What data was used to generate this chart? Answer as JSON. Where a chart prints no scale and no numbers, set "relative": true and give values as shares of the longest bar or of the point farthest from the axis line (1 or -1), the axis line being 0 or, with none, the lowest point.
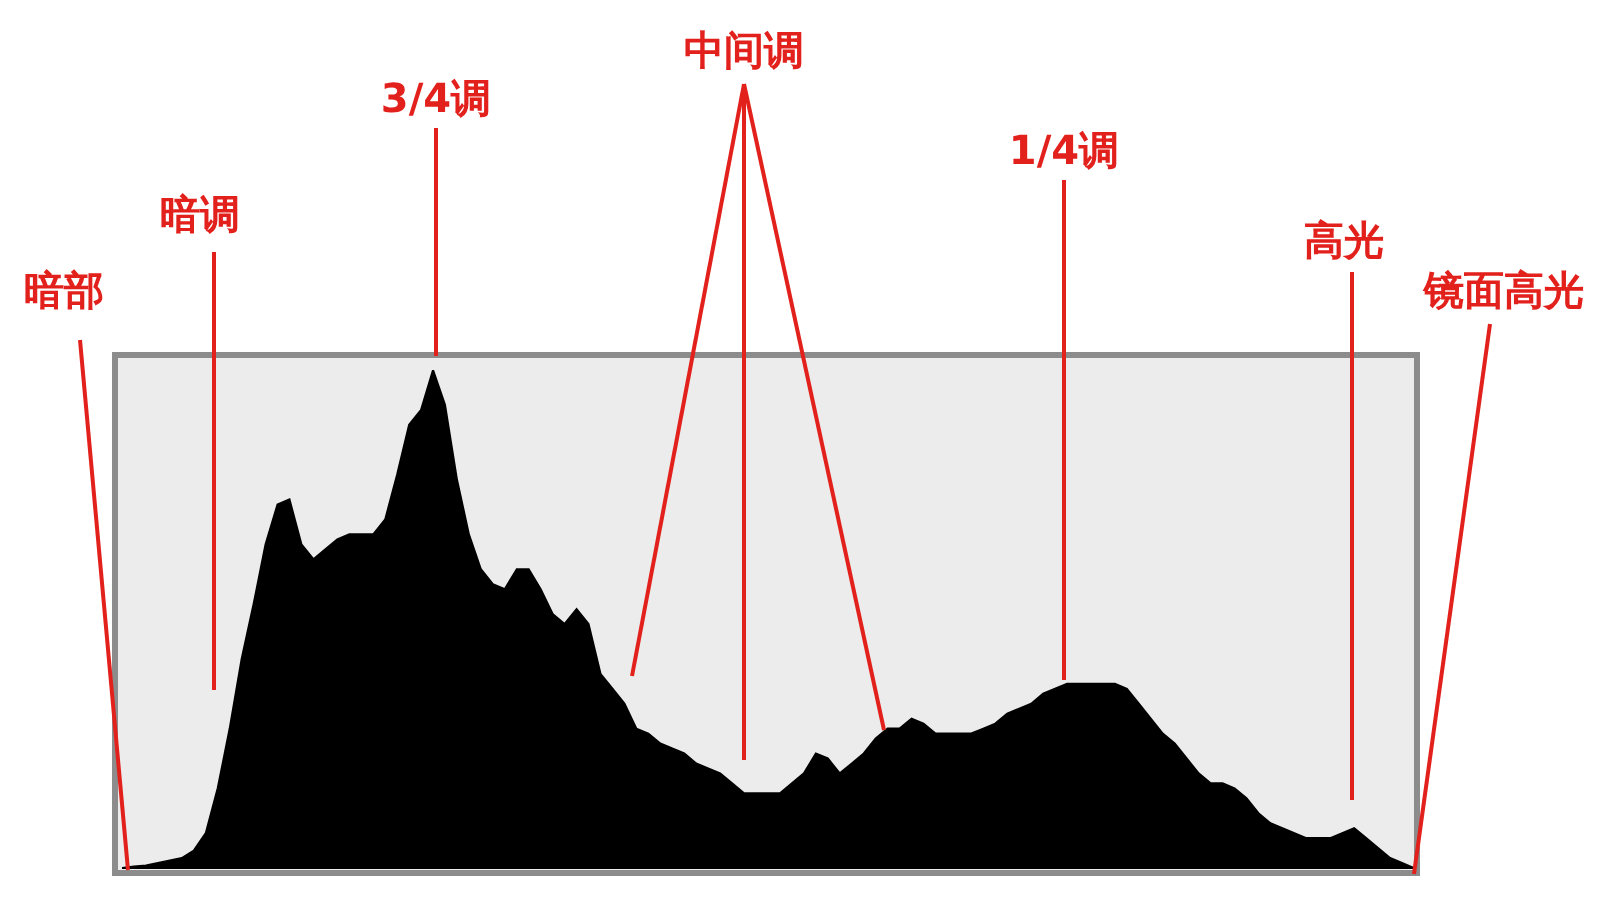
{
  "chart_data": {
    "type": "area",
    "relative": true,
    "color": "#000000",
    "categories": [
      null,
      null,
      null,
      null,
      null,
      null,
      null,
      null,
      null,
      null,
      null,
      null,
      null,
      null,
      null,
      null,
      null,
      null,
      null,
      null,
      null,
      null,
      null,
      null,
      null,
      null,
      null,
      null,
      null,
      null,
      null,
      null,
      null,
      null,
      null,
      null,
      null,
      null,
      null,
      null,
      null,
      null,
      null,
      null,
      null,
      null,
      null,
      null,
      null,
      null,
      null,
      null,
      null,
      null,
      null,
      null,
      null,
      null,
      null,
      null,
      null,
      null,
      null,
      null,
      null,
      null,
      null,
      null,
      null,
      null,
      null,
      null,
      null,
      null,
      null,
      null,
      null,
      null,
      null,
      null,
      null,
      null,
      null,
      null,
      null,
      null,
      null,
      null,
      null,
      null,
      null,
      null,
      null,
      null,
      null,
      null,
      null,
      null,
      null,
      null,
      null,
      null,
      null,
      null,
      null,
      null,
      null,
      null,
      null
    ],
    "values": [
      0,
      0.003,
      0.005,
      0.01,
      0.015,
      0.02,
      0.035,
      0.07,
      0.16,
      0.28,
      0.42,
      0.53,
      0.65,
      0.73,
      0.74,
      0.65,
      0.62,
      0.64,
      0.66,
      0.67,
      0.67,
      0.67,
      0.7,
      0.79,
      0.89,
      0.92,
      1,
      0.93,
      0.78,
      0.67,
      0.6,
      0.57,
      0.56,
      0.6,
      0.6,
      0.56,
      0.51,
      0.49,
      0.52,
      0.49,
      0.39,
      0.36,
      0.33,
      0.28,
      0.27,
      0.25,
      0.24,
      0.23,
      0.21,
      0.2,
      0.19,
      0.17,
      0.15,
      0.15,
      0.15,
      0.15,
      0.17,
      0.19,
      0.23,
      0.22,
      0.19,
      0.21,
      0.23,
      0.26,
      0.28,
      0.28,
      0.3,
      0.29,
      0.27,
      0.27,
      0.27,
      0.27,
      0.28,
      0.29,
      0.31,
      0.32,
      0.33,
      0.35,
      0.36,
      0.37,
      0.37,
      0.37,
      0.37,
      0.37,
      0.36,
      0.33,
      0.3,
      0.27,
      0.25,
      0.22,
      0.19,
      0.17,
      0.17,
      0.16,
      0.14,
      0.11,
      0.09,
      0.08,
      0.07,
      0.06,
      0.06,
      0.06,
      0.07,
      0.08,
      0.06,
      0.04,
      0.02,
      0.01,
      0
    ],
    "annotations": [
      "暗部",
      "暗调",
      "3/4调",
      "中间调",
      "1/4调",
      "高光",
      "镜面高光"
    ]
  }
}
